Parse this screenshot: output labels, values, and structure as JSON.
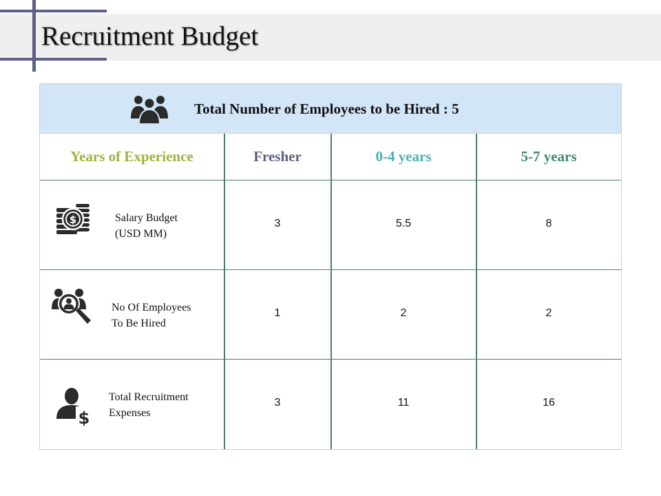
{
  "page": {
    "title": "Recruitment Budget"
  },
  "table": {
    "banner": {
      "icon": "group-icon",
      "text": "Total Number of Employees to be Hired : 5"
    },
    "headers": [
      {
        "label": "Years of Experience",
        "color": "#9ab33c"
      },
      {
        "label": "Fresher",
        "color": "#5c5f86"
      },
      {
        "label": "0-4 years",
        "color": "#4bb0b8"
      },
      {
        "label": "5-7 years",
        "color": "#3e8a6d"
      }
    ],
    "rows": [
      {
        "icon": "money-coins-icon",
        "label_line1": "Salary Budget",
        "label_line2": "(USD MM)",
        "values": [
          "3",
          "5.5",
          "8"
        ]
      },
      {
        "icon": "employee-search-icon",
        "label_line1": "No Of Employees",
        "label_line2": "To Be Hired",
        "values": [
          "1",
          "2",
          "2"
        ]
      },
      {
        "icon": "person-dollar-icon",
        "label_line1": "Total Recruitment",
        "label_line2": "Expenses",
        "values": [
          "3",
          "11",
          "16"
        ]
      }
    ],
    "grid_color": "#4a7f68",
    "banner_color": "#d2e6f7"
  }
}
